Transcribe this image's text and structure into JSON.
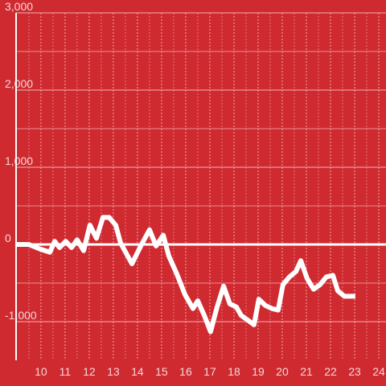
{
  "chart_data": {
    "type": "line",
    "background": "#cf2a30",
    "color": "#ffffff",
    "xlim": [
      8.97,
      24.3
    ],
    "xticks": [
      10,
      11,
      12,
      13,
      14,
      15,
      16,
      17,
      18,
      19,
      20,
      21,
      22,
      23,
      24
    ],
    "xminorticks": [
      9.5,
      10.5,
      11.5,
      12.5,
      13.5,
      14.5,
      15.5,
      16.5,
      17.5,
      18.5,
      19.5,
      20.5,
      21.5,
      22.5,
      23.5
    ],
    "ylim": [
      -1500,
      3000
    ],
    "yticks": [
      {
        "value": -1000,
        "label": "-1,000"
      },
      0,
      {
        "value": 1000,
        "label": "1,000"
      },
      {
        "value": 2000,
        "label": "2,000"
      },
      {
        "value": 3000,
        "label": "3,000"
      }
    ],
    "yminorticks": [
      -500,
      500,
      1500,
      2500
    ],
    "grid": true,
    "x": [
      9.0,
      9.5,
      9.97,
      10.37,
      10.57,
      10.77,
      11.03,
      11.27,
      11.5,
      11.77,
      12.03,
      12.3,
      12.57,
      12.83,
      13.1,
      13.3,
      13.77,
      14.17,
      14.5,
      14.77,
      15.07,
      15.3,
      15.63,
      15.97,
      16.3,
      16.5,
      16.77,
      17.03,
      17.3,
      17.57,
      17.83,
      18.1,
      18.3,
      18.57,
      18.83,
      19.03,
      19.3,
      19.57,
      19.83,
      20.03,
      20.3,
      20.57,
      20.77,
      21.03,
      21.3,
      21.57,
      21.83,
      22.1,
      22.3,
      22.57,
      23.03
    ],
    "values": [
      0,
      0,
      -60,
      -100,
      40,
      -40,
      40,
      -40,
      60,
      -80,
      250,
      80,
      350,
      350,
      250,
      20,
      -250,
      0,
      190,
      -20,
      120,
      -150,
      -380,
      -650,
      -830,
      -730,
      -920,
      -1130,
      -810,
      -540,
      -770,
      -810,
      -920,
      -980,
      -1040,
      -710,
      -790,
      -830,
      -850,
      -520,
      -420,
      -350,
      -210,
      -440,
      -580,
      -520,
      -420,
      -400,
      -600,
      -670,
      -670
    ]
  }
}
